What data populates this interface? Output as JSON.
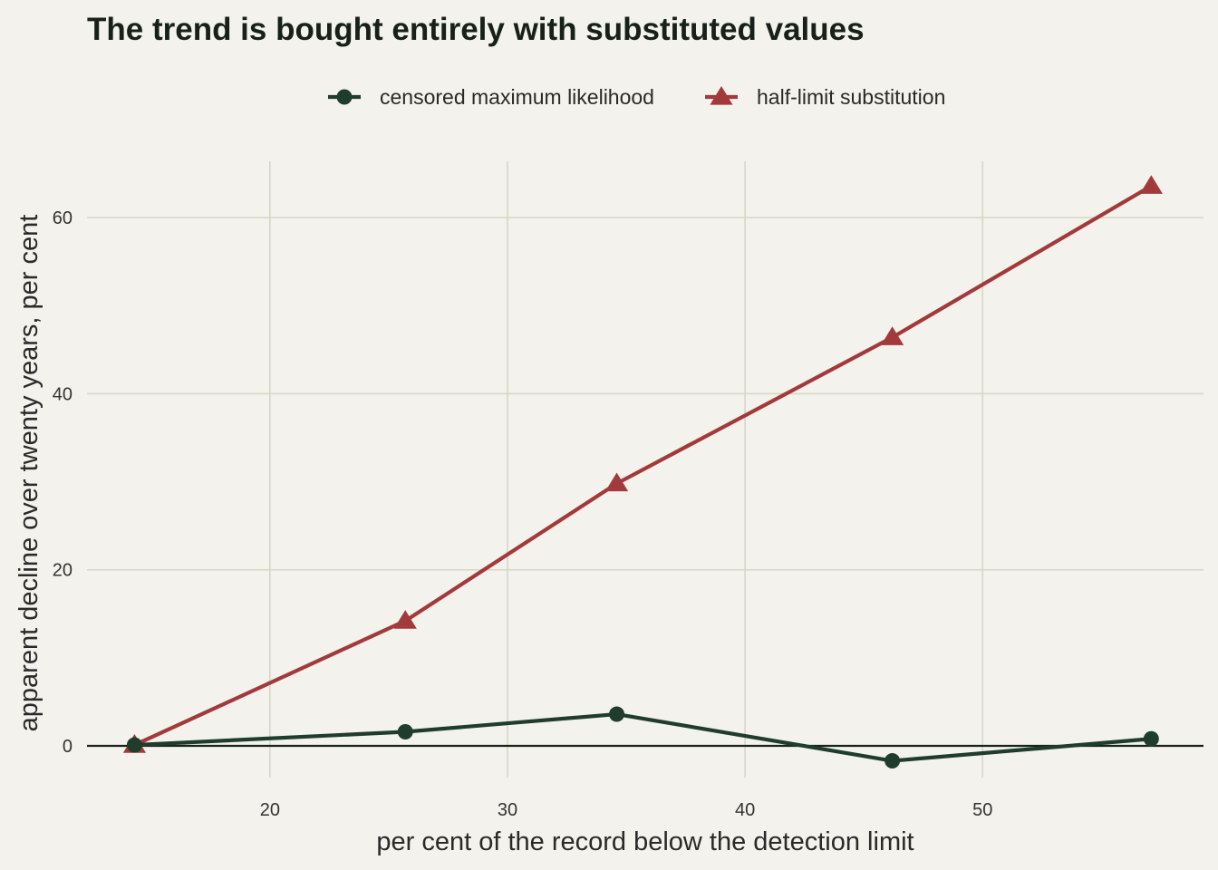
{
  "chart_data": {
    "type": "line",
    "title": "The trend is bought entirely with substituted values",
    "xlabel": "per cent of the record below the detection limit",
    "ylabel": "apparent decline over twenty years, per cent",
    "xlim": [
      12.3,
      59.3
    ],
    "ylim": [
      -3.6,
      66.4
    ],
    "x_ticks": [
      20,
      30,
      40,
      50
    ],
    "y_ticks": [
      0,
      20,
      40,
      60
    ],
    "grid": true,
    "legend_position": "top",
    "reference_line": 0,
    "series": [
      {
        "name": "censored maximum likelihood",
        "color": "#1f3d2b",
        "marker": "circle",
        "x": [
          14.3,
          25.7,
          34.6,
          46.2,
          57.1
        ],
        "y": [
          0.1,
          1.6,
          3.6,
          -1.7,
          0.8
        ]
      },
      {
        "name": "half-limit substitution",
        "color": "#a23a3c",
        "marker": "triangle",
        "x": [
          14.3,
          25.7,
          34.6,
          46.2,
          57.1
        ],
        "y": [
          0.1,
          14.2,
          29.8,
          46.4,
          63.6
        ]
      }
    ]
  }
}
